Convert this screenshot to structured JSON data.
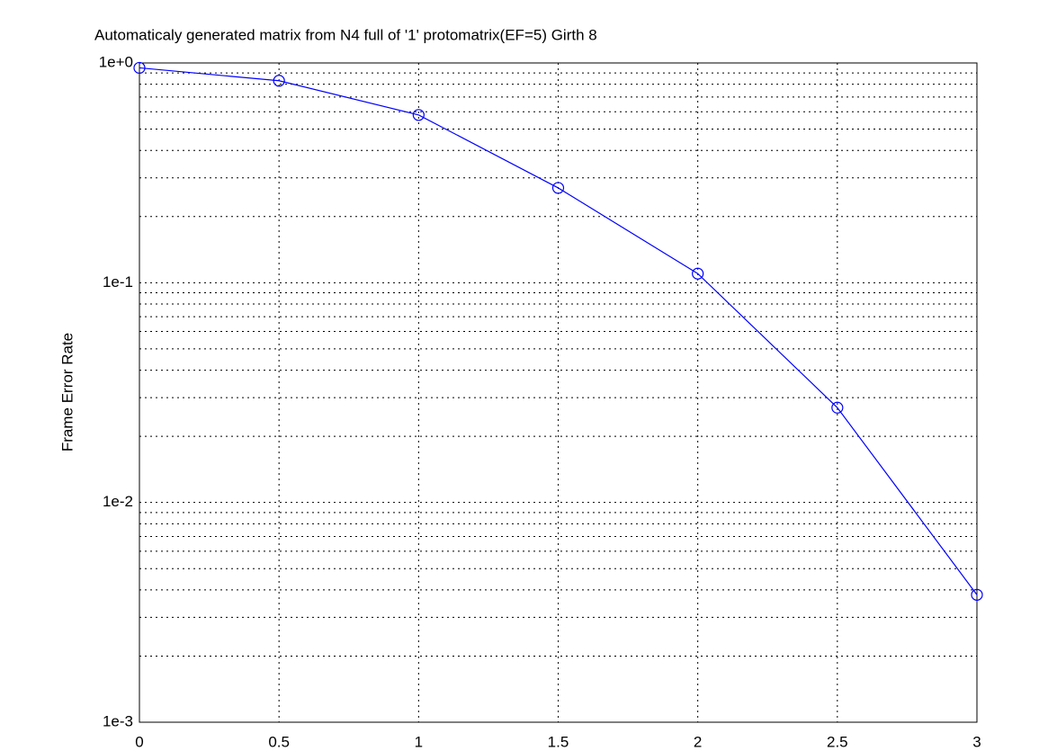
{
  "chart_data": {
    "type": "line",
    "title": "Automaticaly generated matrix from N4 full of '1' protomatrix(EF=5) Girth 8",
    "ylabel": "Frame Error Rate",
    "x": [
      0,
      0.5,
      1,
      1.5,
      2,
      2.5,
      3
    ],
    "series": [
      {
        "name": "FER",
        "color": "#0000ff",
        "marker": "circle",
        "values": [
          0.95,
          0.83,
          0.58,
          0.27,
          0.11,
          0.027,
          0.0038
        ]
      }
    ],
    "xlim": [
      0,
      3
    ],
    "xticks": [
      0,
      0.5,
      1,
      1.5,
      2,
      2.5,
      3
    ],
    "ylim": [
      0.001,
      1
    ],
    "yscale": "log",
    "yticks": [
      {
        "value": 1,
        "label": "1e+0"
      },
      {
        "value": 0.1,
        "label": "1e-1"
      },
      {
        "value": 0.01,
        "label": "1e-2"
      },
      {
        "value": 0.001,
        "label": "1e-3"
      }
    ],
    "minor_yticks": [
      0.002,
      0.003,
      0.004,
      0.005,
      0.006,
      0.007,
      0.008,
      0.009,
      0.02,
      0.03,
      0.04,
      0.05,
      0.06,
      0.07,
      0.08,
      0.09,
      0.2,
      0.3,
      0.4,
      0.5,
      0.6,
      0.7,
      0.8,
      0.9
    ],
    "grid": true
  }
}
